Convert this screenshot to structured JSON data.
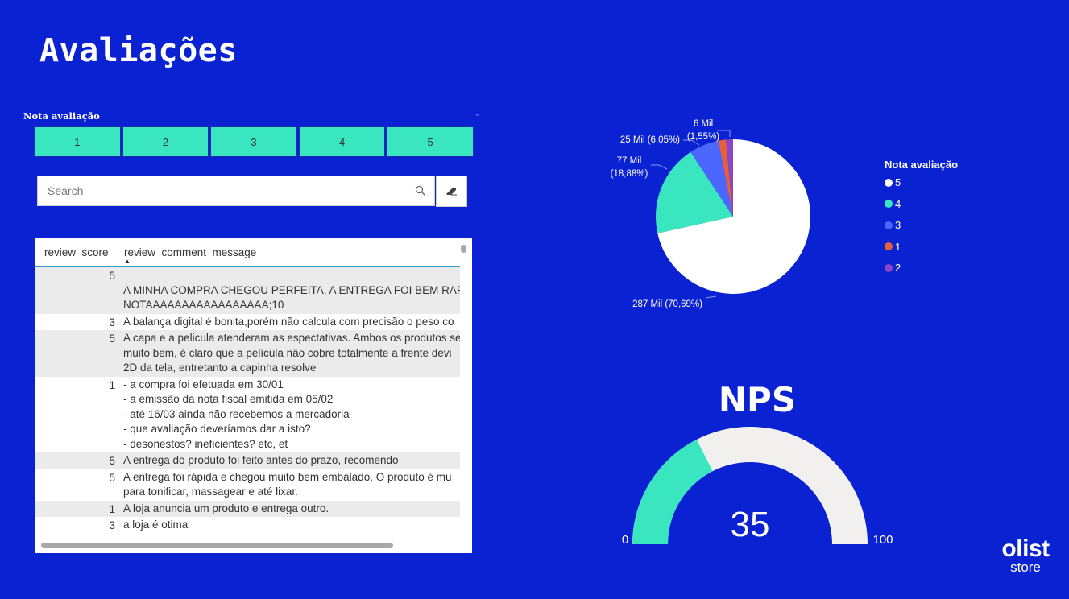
{
  "page_title": "Avaliações",
  "slicer": {
    "title": "Nota avaliação",
    "options": [
      "1",
      "2",
      "3",
      "4",
      "5"
    ]
  },
  "search": {
    "placeholder": "Search"
  },
  "table": {
    "headers": [
      "review_score",
      "review_comment_message"
    ],
    "rows": [
      {
        "score": "5",
        "lines": [
          "",
          "A MINHA COMPRA CHEGOU PERFEITA, A ENTREGA FOI BEM RAPIDA",
          "NOTAAAAAAAAAAAAAAAAA;10"
        ]
      },
      {
        "score": "3",
        "lines": [
          "A balança digital é bonita,porém não calcula com precisão o peso co"
        ]
      },
      {
        "score": "5",
        "lines": [
          "A capa e a pelicula atenderam as espectativas. Ambos os produtos se",
          "muito bem, é claro que a película não cobre totalmente a frente devi",
          "2D da tela, entretanto a capinha resolve"
        ]
      },
      {
        "score": "1",
        "lines": [
          "- a compra foi efetuada em 30/01",
          "- a emissão da nota fiscal emitida em 05/02",
          "- até 16/03 ainda não recebemos a mercadoria",
          "- que avaliação deveríamos dar a isto?",
          "- desonestos? ineficientes? etc, et"
        ]
      },
      {
        "score": "5",
        "lines": [
          "A entrega do produto foi feito antes do prazo, recomendo"
        ]
      },
      {
        "score": "5",
        "lines": [
          "A entrega foi rápida e chegou muito bem embalado. O produto é mu",
          "para tonificar, massagear e até lixar."
        ]
      },
      {
        "score": "1",
        "lines": [
          "A loja anuncia um produto e entrega outro."
        ]
      },
      {
        "score": "3",
        "lines": [
          "a loja é otima"
        ]
      }
    ]
  },
  "chart_data": [
    {
      "type": "pie",
      "legend_title": "Nota avaliação",
      "legend_placement": "right",
      "slices": [
        {
          "name": "5",
          "value": 287,
          "label": "287 Mil (70,69%)",
          "color": "#ffffff"
        },
        {
          "name": "4",
          "value": 77,
          "label": "77 Mil (18,88%)",
          "color": "#3ae6c0"
        },
        {
          "name": "3",
          "value": 25,
          "label": "25 Mil (6,05%)",
          "color": "#4c67ff"
        },
        {
          "name": "1",
          "value": 6.2,
          "label": "",
          "color": "#e8603a"
        },
        {
          "name": "2",
          "value": 6,
          "label": "6 Mil (1,55%)",
          "color": "#8a45c8"
        }
      ]
    },
    {
      "type": "gauge",
      "title": "NPS",
      "value": 35,
      "min": 0,
      "max": 100,
      "value_label": "35",
      "min_label": "0",
      "max_label": "100",
      "fill_color": "#3ae6c0",
      "track_color": "#f1f0ee"
    }
  ],
  "logo": {
    "main": "olist",
    "sub": "store"
  }
}
